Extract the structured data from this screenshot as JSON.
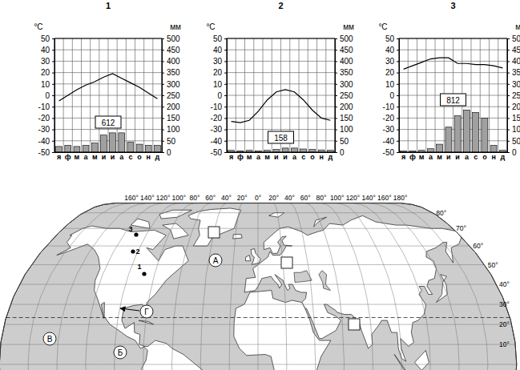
{
  "chart_data": [
    {
      "type": "combo",
      "title": "1",
      "ylabel": "°C",
      "y2label": "мм",
      "categories": [
        "я",
        "ф",
        "м",
        "а",
        "м",
        "и",
        "и",
        "а",
        "с",
        "о",
        "н",
        "д"
      ],
      "series": [
        {
          "type": "line",
          "color": "#000000",
          "values": [
            -5,
            0,
            5,
            9,
            12,
            16,
            19,
            15,
            11,
            7,
            2,
            -3
          ]
        },
        {
          "type": "bar",
          "axis": "y2",
          "color": "#a0a0a0",
          "values": [
            25,
            30,
            25,
            30,
            40,
            75,
            85,
            85,
            45,
            35,
            30,
            30
          ]
        }
      ],
      "annotation": 612,
      "ylim": [
        -50,
        50
      ],
      "yticks": [
        -50,
        -40,
        -30,
        -20,
        -10,
        0,
        10,
        20,
        30,
        40,
        50
      ],
      "y2lim": [
        0,
        500
      ],
      "y2ticks": [
        0,
        50,
        100,
        150,
        200,
        250,
        300,
        350,
        400,
        450,
        500
      ],
      "grid": true
    },
    {
      "type": "combo",
      "title": "2",
      "ylabel": "°C",
      "y2label": "мм",
      "categories": [
        "я",
        "ф",
        "м",
        "а",
        "м",
        "и",
        "и",
        "а",
        "с",
        "о",
        "н",
        "д"
      ],
      "series": [
        {
          "type": "line",
          "color": "#000000",
          "values": [
            -23,
            -24,
            -22,
            -14,
            -4,
            3,
            5,
            3,
            -4,
            -13,
            -20,
            -22
          ]
        },
        {
          "type": "bar",
          "axis": "y2",
          "color": "#a0a0a0",
          "values": [
            8,
            6,
            8,
            6,
            8,
            12,
            18,
            18,
            14,
            12,
            10,
            8
          ]
        }
      ],
      "annotation": 158,
      "ylim": [
        -50,
        50
      ],
      "yticks": [
        -50,
        -40,
        -30,
        -20,
        -10,
        0,
        10,
        20,
        30,
        40,
        50
      ],
      "y2lim": [
        0,
        500
      ],
      "y2ticks": [
        0,
        50,
        100,
        150,
        200,
        250,
        300,
        350,
        400,
        450,
        500
      ],
      "grid": true
    },
    {
      "type": "combo",
      "title": "3",
      "ylabel": "°C",
      "y2label": "мм",
      "categories": [
        "я",
        "ф",
        "м",
        "а",
        "м",
        "и",
        "и",
        "а",
        "с",
        "о",
        "н",
        "д"
      ],
      "series": [
        {
          "type": "line",
          "color": "#000000",
          "values": [
            23,
            26,
            29,
            32,
            33,
            33,
            28,
            28,
            27,
            27,
            26,
            24
          ]
        },
        {
          "type": "bar",
          "axis": "y2",
          "color": "#a0a0a0",
          "values": [
            5,
            5,
            8,
            15,
            35,
            110,
            160,
            185,
            175,
            150,
            30,
            8
          ]
        }
      ],
      "annotation": 812,
      "ylim": [
        -50,
        50
      ],
      "yticks": [
        -50,
        -40,
        -30,
        -20,
        -10,
        0,
        10,
        20,
        30,
        40,
        50
      ],
      "y2lim": [
        0,
        500
      ],
      "y2ticks": [
        0,
        50,
        100,
        150,
        200,
        250,
        300,
        350,
        400,
        450,
        500
      ],
      "grid": true
    }
  ],
  "map": {
    "lon_labels": [
      {
        "value": -160,
        "label": "160°"
      },
      {
        "value": -140,
        "label": "140°"
      },
      {
        "value": -120,
        "label": "120°"
      },
      {
        "value": -100,
        "label": "100°"
      },
      {
        "value": -80,
        "label": "80°"
      },
      {
        "value": -60,
        "label": "60°"
      },
      {
        "value": -40,
        "label": "40°"
      },
      {
        "value": -20,
        "label": "20°"
      },
      {
        "value": 0,
        "label": "0°"
      },
      {
        "value": 20,
        "label": "20°"
      },
      {
        "value": 40,
        "label": "40°"
      },
      {
        "value": 60,
        "label": "60°"
      },
      {
        "value": 80,
        "label": "80°"
      },
      {
        "value": 100,
        "label": "100°"
      },
      {
        "value": 120,
        "label": "120°"
      },
      {
        "value": 140,
        "label": "140°"
      },
      {
        "value": 160,
        "label": "160°"
      },
      {
        "value": 180,
        "label": "180°"
      }
    ],
    "lat_labels": [
      {
        "value": 80,
        "label": "80°"
      },
      {
        "value": 70,
        "label": "70°"
      },
      {
        "value": 60,
        "label": "60°"
      },
      {
        "value": 50,
        "label": "50°"
      },
      {
        "value": 40,
        "label": "40°"
      },
      {
        "value": 30,
        "label": "30°"
      },
      {
        "value": 20,
        "label": "20°"
      },
      {
        "value": 10,
        "label": "10°"
      }
    ],
    "letters": [
      "А",
      "Б",
      "В",
      "Г"
    ],
    "points": [
      "1",
      "2",
      "3"
    ]
  }
}
